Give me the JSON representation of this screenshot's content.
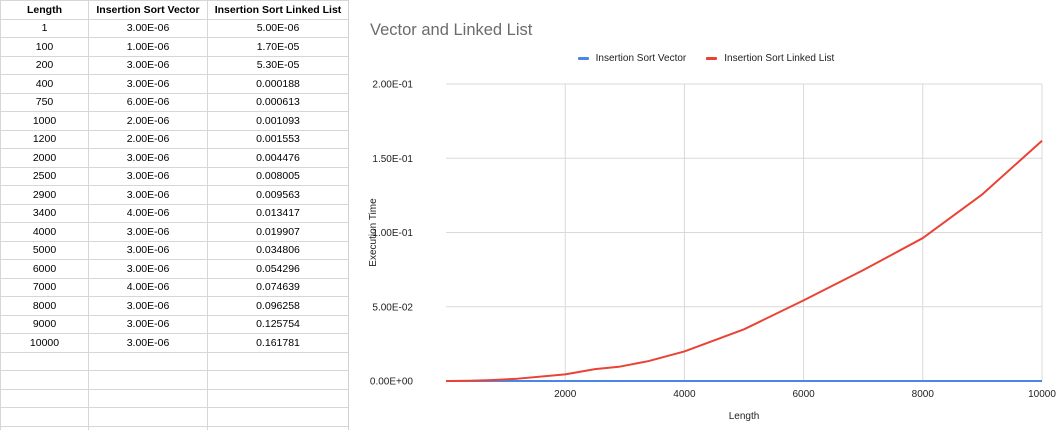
{
  "table": {
    "headers": [
      "Length",
      "Insertion Sort Vector",
      "Insertion Sort Linked List"
    ],
    "rows": [
      [
        "1",
        "3.00E-06",
        "5.00E-06"
      ],
      [
        "100",
        "1.00E-06",
        "1.70E-05"
      ],
      [
        "200",
        "3.00E-06",
        "5.30E-05"
      ],
      [
        "400",
        "3.00E-06",
        "0.000188"
      ],
      [
        "750",
        "6.00E-06",
        "0.000613"
      ],
      [
        "1000",
        "2.00E-06",
        "0.001093"
      ],
      [
        "1200",
        "2.00E-06",
        "0.001553"
      ],
      [
        "2000",
        "3.00E-06",
        "0.004476"
      ],
      [
        "2500",
        "3.00E-06",
        "0.008005"
      ],
      [
        "2900",
        "3.00E-06",
        "0.009563"
      ],
      [
        "3400",
        "4.00E-06",
        "0.013417"
      ],
      [
        "4000",
        "3.00E-06",
        "0.019907"
      ],
      [
        "5000",
        "3.00E-06",
        "0.034806"
      ],
      [
        "6000",
        "3.00E-06",
        "0.054296"
      ],
      [
        "7000",
        "4.00E-06",
        "0.074639"
      ],
      [
        "8000",
        "3.00E-06",
        "0.096258"
      ],
      [
        "9000",
        "3.00E-06",
        "0.125754"
      ],
      [
        "10000",
        "3.00E-06",
        "0.161781"
      ]
    ]
  },
  "chart_data": {
    "type": "line",
    "title": "Vector and Linked List",
    "xlabel": "Length",
    "ylabel": "Execution Time",
    "x": [
      1,
      100,
      200,
      400,
      750,
      1000,
      1200,
      2000,
      2500,
      2900,
      3400,
      4000,
      5000,
      6000,
      7000,
      8000,
      9000,
      10000
    ],
    "series": [
      {
        "name": "Insertion Sort Vector",
        "color": "#4a86e8",
        "values": [
          3e-06,
          1e-06,
          3e-06,
          3e-06,
          6e-06,
          2e-06,
          2e-06,
          3e-06,
          3e-06,
          3e-06,
          4e-06,
          3e-06,
          3e-06,
          3e-06,
          4e-06,
          3e-06,
          3e-06,
          3e-06
        ]
      },
      {
        "name": "Insertion Sort Linked List",
        "color": "#ea4335",
        "values": [
          5e-06,
          1.7e-05,
          5.3e-05,
          0.000188,
          0.000613,
          0.001093,
          0.001553,
          0.004476,
          0.008005,
          0.009563,
          0.013417,
          0.019907,
          0.034806,
          0.054296,
          0.074639,
          0.096258,
          0.125754,
          0.161781
        ]
      }
    ],
    "xlim": [
      0,
      10000
    ],
    "ylim": [
      0,
      0.2
    ],
    "xticks": [
      2000,
      4000,
      6000,
      8000,
      10000
    ],
    "xtick_labels": [
      "2000",
      "4000",
      "6000",
      "8000",
      "10000"
    ],
    "yticks": [
      0,
      0.05,
      0.1,
      0.15,
      0.2
    ],
    "ytick_labels": [
      "0.00E+00",
      "5.00E-02",
      "1.00E-01",
      "1.50E-01",
      "2.00E-01"
    ],
    "grid": true,
    "legend_position": "top"
  }
}
